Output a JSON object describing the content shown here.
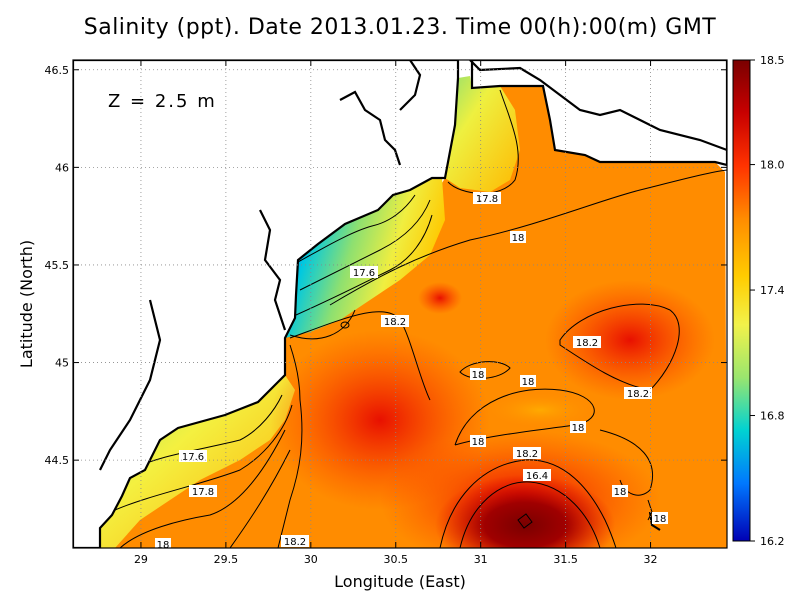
{
  "title": "Salinity (ppt). Date 2013.01.23. Time 00(h):00(m) GMT",
  "depth_label": "Z = 2.5 m",
  "xaxis": {
    "label": "Longitude (East)",
    "range": [
      28.6,
      32.45
    ],
    "ticks": [
      "29",
      "29.5",
      "30",
      "30.5",
      "31",
      "31.5",
      "32"
    ]
  },
  "yaxis": {
    "label": "Latitude (North)",
    "range": [
      44.05,
      46.55
    ],
    "ticks": [
      "44.5",
      "45",
      "45.5",
      "46",
      "46.5"
    ]
  },
  "colorbar": {
    "min": 16.2,
    "max": 18.5,
    "ticks": [
      "18.5",
      "18.0",
      "17.4",
      "16.8",
      "16.2"
    ],
    "colors": [
      "#7a0000",
      "#c80000",
      "#ff3300",
      "#ff8c00",
      "#ffcc00",
      "#f2f24a",
      "#9ae66e",
      "#00d2d2",
      "#0078ff",
      "#0000b4"
    ]
  },
  "contour_labels": [
    "17.8",
    "18",
    "17.6",
    "18.2",
    "18.2",
    "18",
    "18",
    "18.2",
    "18",
    "18",
    "18.2",
    "16.4",
    "18",
    "18",
    "17.6",
    "17.8",
    "18",
    "18.2"
  ]
}
